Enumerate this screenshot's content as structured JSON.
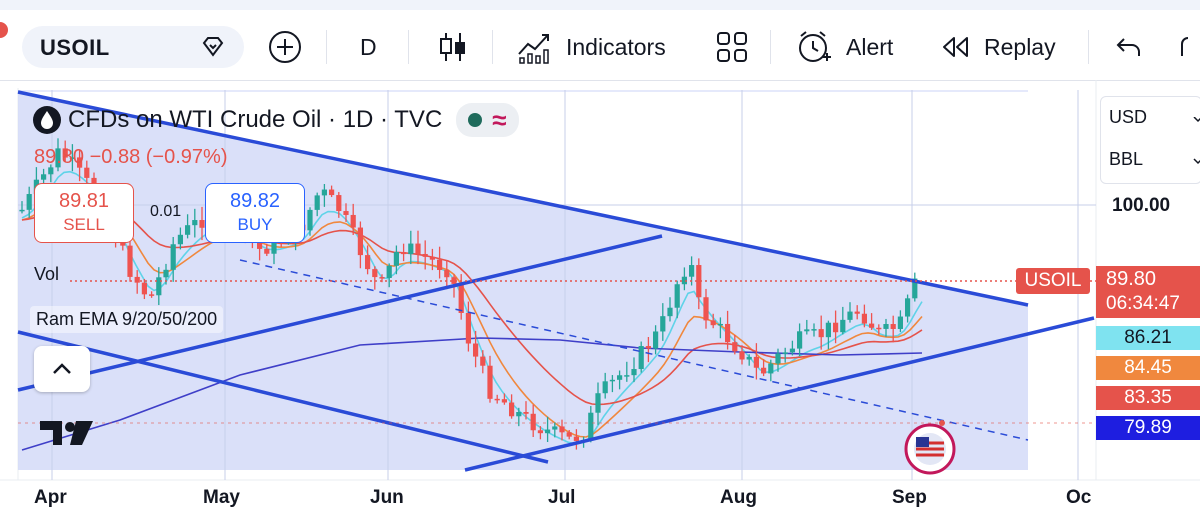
{
  "toolbar": {
    "symbol": "USOIL",
    "interval": "D",
    "indicators_label": "Indicators",
    "alert_label": "Alert",
    "replay_label": "Replay"
  },
  "legend": {
    "title": "CFDs on WTI Crude Oil · 1D · TVC",
    "price_change": "89.80 −0.88 (−0.97%)",
    "sell_price": "89.81",
    "sell_label": "SELL",
    "spread": "0.01",
    "buy_price": "89.82",
    "buy_label": "BUY",
    "vol_label": "Vol",
    "indicator_label": "Ram EMA 9/20/50/200"
  },
  "price_axis": {
    "currency": "USD",
    "unit": "BBL",
    "tick_100": "100.00",
    "symbol_tag": "USOIL",
    "last_price": "89.80",
    "countdown": "06:34:47",
    "ema9": "86.21",
    "ema20": "84.45",
    "ema50": "83.35",
    "ema200": "79.89"
  },
  "colors": {
    "up": "#26a69a",
    "down": "#ef5350",
    "channel": "#2a4bd7",
    "ema9": "#5fd3e8",
    "ema20": "#f0883e",
    "ema50": "#e5534b",
    "ema200": "#3f3fc8"
  },
  "chart_data": {
    "type": "candlestick",
    "title": "CFDs on WTI Crude Oil · 1D · TVC",
    "x_labels": [
      "Apr",
      "May",
      "Jun",
      "Jul",
      "Aug",
      "Sep",
      "Oc"
    ],
    "y_tick": 100.0,
    "last_price": 89.8,
    "series": [
      {
        "name": "EMA 9",
        "last": 86.21
      },
      {
        "name": "EMA 20",
        "last": 84.45
      },
      {
        "name": "EMA 50",
        "last": 83.35
      },
      {
        "name": "EMA 200",
        "last": 79.89
      }
    ]
  }
}
